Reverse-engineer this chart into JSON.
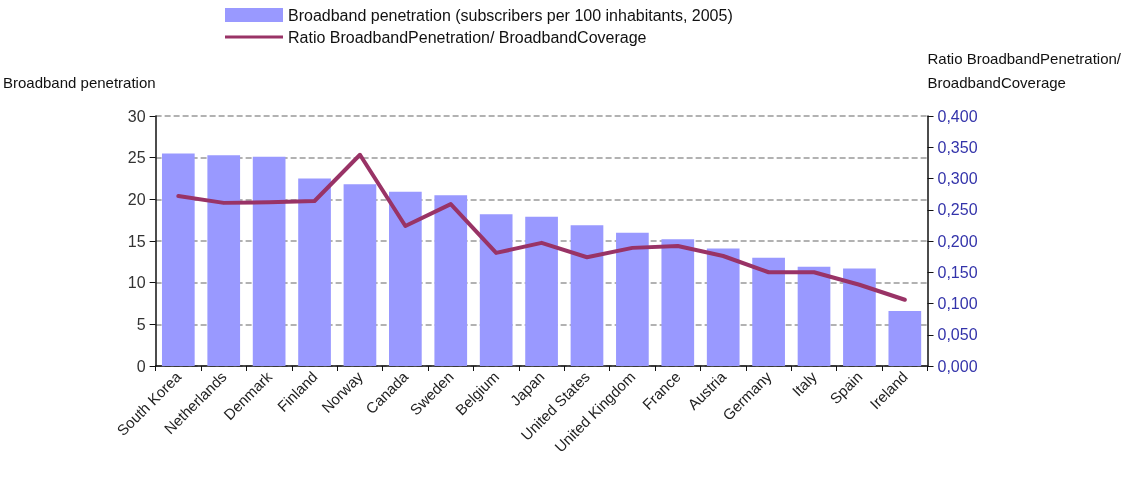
{
  "chart_data": {
    "type": "bar",
    "categories": [
      "South Korea",
      "Netherlands",
      "Denmark",
      "Finland",
      "Norway",
      "Canada",
      "Sweden",
      "Belgium",
      "Japan",
      "United States",
      "United Kingdom",
      "France",
      "Austria",
      "Germany",
      "Italy",
      "Spain",
      "Ireland"
    ],
    "ylabel": "Broadband penetration",
    "y2label": "Ratio BroadbandPenetration/\nBroadbandCoverage",
    "series": [
      {
        "name": "Broadband penetration (subscribers per 100 inhabitants, 2005)",
        "color": "#9999ff",
        "values": [
          25.5,
          25.3,
          25.1,
          22.5,
          21.8,
          20.9,
          20.5,
          18.2,
          17.9,
          16.9,
          16.0,
          15.2,
          14.1,
          13.0,
          11.9,
          11.7,
          6.6
        ]
      },
      {
        "name": "Ratio BroadbandPenetration/ BroadbandCoverage",
        "type": "line",
        "axis": "y2",
        "color": "#993366",
        "values": [
          0.272,
          0.261,
          0.262,
          0.264,
          0.338,
          0.224,
          0.259,
          0.181,
          0.197,
          0.174,
          0.189,
          0.192,
          0.176,
          0.15,
          0.15,
          0.13,
          0.106
        ]
      }
    ],
    "ylim": [
      0,
      30
    ],
    "yticks": [
      0,
      5,
      10,
      15,
      20,
      25,
      30
    ],
    "y2lim": [
      0,
      0.4
    ],
    "y2ticks": [
      {
        "value": 0,
        "label": "0,000"
      },
      {
        "value": 0.05,
        "label": "0,050"
      },
      {
        "value": 0.1,
        "label": "0,100"
      },
      {
        "value": 0.15,
        "label": "0,150"
      },
      {
        "value": 0.2,
        "label": "0,200"
      },
      {
        "value": 0.25,
        "label": "0,250"
      },
      {
        "value": 0.3,
        "label": "0,300"
      },
      {
        "value": 0.35,
        "label": "0,350"
      },
      {
        "value": 0.4,
        "label": "0,400"
      }
    ],
    "grid": "y",
    "legend": "top",
    "marker": "none",
    "line_style": "solid"
  }
}
